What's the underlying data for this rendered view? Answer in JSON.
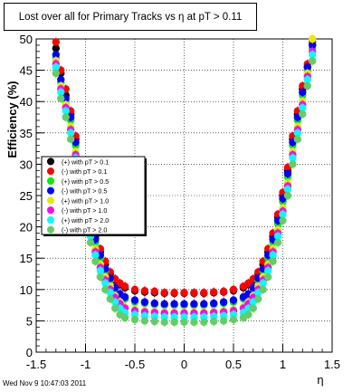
{
  "title": "Lost over all for Primary Tracks vs η at pT > 0.11",
  "footer": "Wed Nov  9 10:47:03 2011",
  "chart_data": {
    "type": "scatter",
    "xlabel": "η",
    "ylabel": "Efficiency (%)",
    "xlim": [
      -1.5,
      1.5
    ],
    "ylim": [
      0,
      50
    ],
    "xticks": [
      "-1.5",
      "-1",
      "-0.5",
      "0",
      "0.5",
      "1",
      "1.5"
    ],
    "yticks": [
      "0",
      "5",
      "10",
      "15",
      "20",
      "25",
      "30",
      "35",
      "40",
      "45",
      "50"
    ],
    "grid": true,
    "legend_position": "left-middle",
    "x": [
      -1.3,
      -1.25,
      -1.2,
      -1.15,
      -1.1,
      -1.05,
      -1.0,
      -0.95,
      -0.9,
      -0.85,
      -0.8,
      -0.75,
      -0.7,
      -0.65,
      -0.6,
      -0.5,
      -0.4,
      -0.3,
      -0.2,
      -0.1,
      0.0,
      0.1,
      0.2,
      0.3,
      0.4,
      0.5,
      0.6,
      0.65,
      0.7,
      0.75,
      0.8,
      0.85,
      0.9,
      0.95,
      1.0,
      1.05,
      1.1,
      1.15,
      1.2,
      1.25,
      1.3
    ],
    "series": [
      {
        "name": "(+) with pT > 0.1",
        "color": "#000000",
        "marker": "circle",
        "values": [
          48.5,
          44.5,
          41,
          38,
          34,
          29,
          25,
          21.5,
          18.5,
          16,
          14,
          12.5,
          11.5,
          10.8,
          10.3,
          9.8,
          9.6,
          9.5,
          9.4,
          9.4,
          9.4,
          9.4,
          9.4,
          9.5,
          9.6,
          9.8,
          10.3,
          10.8,
          11.5,
          12.5,
          14,
          16,
          18.5,
          21.5,
          25,
          29,
          34,
          38,
          42,
          45.5,
          49
        ]
      },
      {
        "name": "(-) with pT > 0.1",
        "color": "#ff0000",
        "marker": "circle",
        "values": [
          49.5,
          45,
          42,
          38.5,
          34.5,
          29.5,
          25.5,
          22,
          19,
          16.5,
          14.5,
          12.8,
          11.7,
          11,
          10.5,
          10,
          9.8,
          9.7,
          9.5,
          9.5,
          9.5,
          9.5,
          9.5,
          9.6,
          9.7,
          10,
          10.5,
          11,
          11.7,
          12.8,
          14.5,
          16.5,
          19,
          22,
          25.5,
          29.5,
          34.5,
          38.5,
          42.5,
          46,
          49.5
        ]
      },
      {
        "name": "(+) with pT > 0.5",
        "color": "#00ee00",
        "marker": "circle",
        "values": [
          47,
          43,
          40,
          37,
          33,
          28,
          24,
          20.5,
          17.5,
          15,
          13,
          11.5,
          10,
          9,
          8.5,
          8,
          7.8,
          7.6,
          7.5,
          7.5,
          7.5,
          7.5,
          7.5,
          7.6,
          7.8,
          8,
          8.5,
          9,
          10,
          11.5,
          13,
          15,
          17.5,
          20.5,
          24,
          28,
          33,
          37,
          41,
          45,
          48.5
        ]
      },
      {
        "name": "(-) with pT > 0.5",
        "color": "#0000ff",
        "marker": "circle",
        "values": [
          47.5,
          43.5,
          40.5,
          37.5,
          33.5,
          28.5,
          24.5,
          21,
          18,
          15.5,
          13.3,
          11.8,
          10.3,
          9.3,
          8.8,
          8.3,
          8,
          7.8,
          7.7,
          7.7,
          7.7,
          7.7,
          7.7,
          7.8,
          8,
          8.3,
          8.8,
          9.3,
          10.3,
          11.8,
          13.3,
          15.5,
          18,
          21,
          24.5,
          28.5,
          33.5,
          37.5,
          41.5,
          45.5,
          49
        ]
      },
      {
        "name": "(+) with pT > 1.0",
        "color": "#e8e800",
        "marker": "circle",
        "values": [
          46.5,
          42.5,
          39.5,
          36,
          32,
          27,
          23,
          19.5,
          16.5,
          14,
          12,
          10.5,
          9,
          8,
          7.2,
          6.8,
          6.6,
          6.5,
          6.4,
          6.4,
          6.4,
          6.4,
          6.4,
          6.5,
          6.6,
          6.8,
          7.2,
          8,
          9,
          10.5,
          12,
          14,
          16.5,
          19.5,
          23,
          27,
          32,
          36,
          40,
          44.5,
          50
        ]
      },
      {
        "name": "(-) with pT > 1.0",
        "color": "#ff00ff",
        "marker": "circle",
        "values": [
          46,
          42,
          39,
          35.5,
          31.5,
          26.5,
          22.5,
          19,
          16,
          13.5,
          11.5,
          10,
          8.7,
          7.7,
          7,
          6.6,
          6.4,
          6.3,
          6.2,
          6.2,
          6.2,
          6.2,
          6.2,
          6.3,
          6.4,
          6.6,
          7,
          7.7,
          8.7,
          10,
          11.5,
          13.5,
          16,
          19,
          22.5,
          26.5,
          31.5,
          35.5,
          39.5,
          44,
          48
        ]
      },
      {
        "name": "(+) with pT > 2.0",
        "color": "#00ffff",
        "marker": "circle",
        "values": [
          45.5,
          41.5,
          38.5,
          35,
          31,
          26,
          22,
          18.5,
          15.5,
          13,
          11,
          9.5,
          8,
          7,
          6.3,
          6,
          5.8,
          5.7,
          5.6,
          5.6,
          5.6,
          5.6,
          5.6,
          5.7,
          5.8,
          6,
          6.3,
          7,
          8,
          9.5,
          11,
          13,
          15.5,
          18.5,
          22,
          26,
          31,
          35,
          39,
          43.5,
          47.5
        ]
      },
      {
        "name": "(-) with pT > 2.0",
        "color": "#66cc66",
        "marker": "circle",
        "values": [
          44.5,
          40.5,
          37.5,
          34,
          30,
          25,
          21,
          17.5,
          14.5,
          12,
          10,
          8.5,
          7,
          6,
          5.5,
          5.2,
          5,
          4.9,
          4.8,
          4.8,
          4.8,
          4.8,
          4.8,
          4.9,
          5,
          5.2,
          5.5,
          6,
          7,
          8.5,
          10,
          12,
          14.5,
          17.5,
          21,
          25,
          30,
          34,
          38,
          42.5,
          46.5
        ]
      }
    ]
  }
}
